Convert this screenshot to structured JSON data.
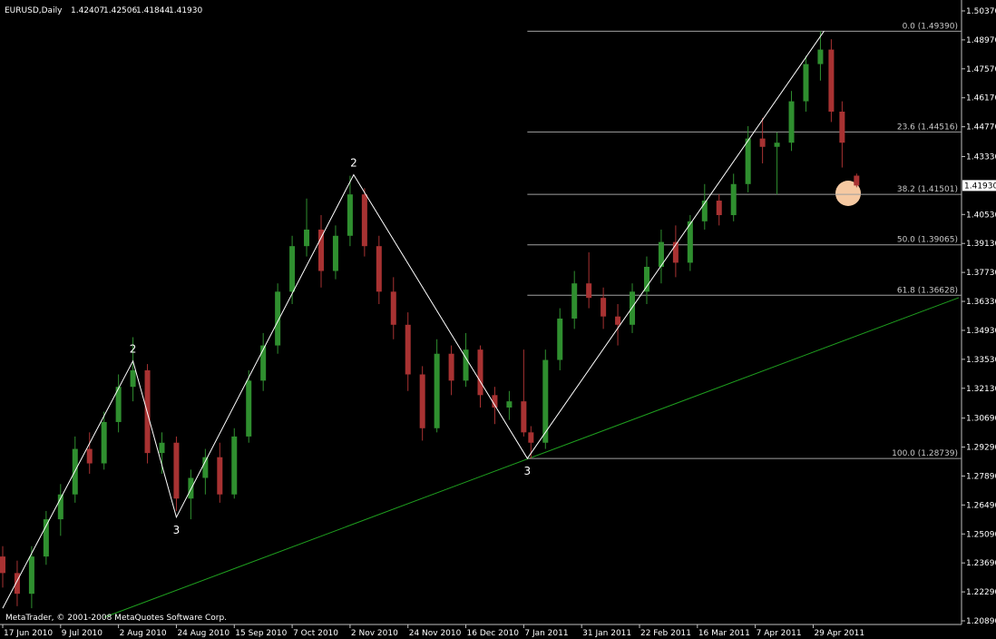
{
  "chart_data": {
    "type": "candlestick",
    "title": "EURUSD,Daily",
    "ohlc_labels": [
      "1.42407",
      "1.42506",
      "1.41844",
      "1.41930"
    ],
    "footer": "MetaTrader, © 2001-2008 MetaQuotes Software Corp.",
    "x": [
      0,
      4,
      8,
      12,
      16,
      20,
      24,
      28,
      32,
      36,
      40,
      44,
      48,
      52,
      56,
      60,
      64,
      68,
      72,
      76,
      80,
      84,
      88,
      92,
      96,
      100,
      104,
      108,
      112,
      116,
      120,
      124,
      128,
      132,
      136,
      140,
      144,
      146,
      150,
      154,
      158,
      162,
      166,
      170,
      174,
      178,
      182,
      186,
      190,
      194,
      198,
      202,
      206,
      210,
      214,
      218,
      222,
      226,
      229,
      232,
      236
    ],
    "open": [
      1.24,
      1.232,
      1.222,
      1.24,
      1.258,
      1.27,
      1.292,
      1.285,
      1.305,
      1.322,
      1.33,
      1.29,
      1.295,
      1.268,
      1.278,
      1.288,
      1.27,
      1.298,
      1.325,
      1.342,
      1.368,
      1.39,
      1.398,
      1.378,
      1.395,
      1.415,
      1.39,
      1.368,
      1.352,
      1.328,
      1.302,
      1.338,
      1.325,
      1.34,
      1.318,
      1.312,
      1.315,
      1.3,
      1.295,
      1.335,
      1.355,
      1.372,
      1.365,
      1.356,
      1.352,
      1.368,
      1.38,
      1.392,
      1.382,
      1.402,
      1.412,
      1.405,
      1.42,
      1.442,
      1.438,
      1.44,
      1.46,
      1.478,
      1.485,
      1.455,
      1.42407
    ],
    "high": [
      1.245,
      1.238,
      1.245,
      1.262,
      1.275,
      1.298,
      1.3,
      1.31,
      1.328,
      1.346,
      1.333,
      1.3,
      1.298,
      1.282,
      1.292,
      1.295,
      1.302,
      1.33,
      1.348,
      1.372,
      1.395,
      1.413,
      1.405,
      1.4,
      1.424,
      1.418,
      1.395,
      1.375,
      1.358,
      1.332,
      1.345,
      1.342,
      1.348,
      1.342,
      1.322,
      1.32,
      1.34,
      1.303,
      1.34,
      1.36,
      1.378,
      1.387,
      1.37,
      1.362,
      1.372,
      1.385,
      1.398,
      1.4,
      1.405,
      1.42,
      1.415,
      1.425,
      1.448,
      1.452,
      1.445,
      1.465,
      1.482,
      1.4939,
      1.49,
      1.46,
      1.42506
    ],
    "low": [
      1.225,
      1.216,
      1.215,
      1.236,
      1.25,
      1.266,
      1.28,
      1.282,
      1.3,
      1.315,
      1.285,
      1.28,
      1.262,
      1.258,
      1.27,
      1.266,
      1.268,
      1.295,
      1.32,
      1.338,
      1.362,
      1.385,
      1.37,
      1.374,
      1.39,
      1.385,
      1.362,
      1.345,
      1.32,
      1.296,
      1.3,
      1.318,
      1.322,
      1.312,
      1.304,
      1.306,
      1.298,
      1.2874,
      1.292,
      1.33,
      1.35,
      1.36,
      1.35,
      1.342,
      1.348,
      1.362,
      1.372,
      1.375,
      1.378,
      1.398,
      1.4,
      1.402,
      1.416,
      1.43,
      1.415,
      1.436,
      1.455,
      1.47,
      1.45,
      1.428,
      1.41844
    ],
    "close": [
      1.232,
      1.222,
      1.24,
      1.258,
      1.27,
      1.292,
      1.285,
      1.305,
      1.322,
      1.33,
      1.29,
      1.295,
      1.268,
      1.278,
      1.288,
      1.27,
      1.298,
      1.325,
      1.342,
      1.368,
      1.39,
      1.398,
      1.378,
      1.395,
      1.415,
      1.39,
      1.368,
      1.352,
      1.328,
      1.302,
      1.338,
      1.325,
      1.34,
      1.318,
      1.312,
      1.315,
      1.3,
      1.295,
      1.335,
      1.355,
      1.372,
      1.365,
      1.356,
      1.352,
      1.368,
      1.38,
      1.392,
      1.382,
      1.402,
      1.412,
      1.405,
      1.42,
      1.442,
      1.438,
      1.44,
      1.46,
      1.478,
      1.485,
      1.455,
      1.44,
      1.4193
    ],
    "up_color": "#2f8f2f",
    "down_color": "#a83232",
    "xlim": [
      -0.75,
      264.25
    ],
    "ylim": [
      1.20715,
      1.50896
    ],
    "xticks": [
      {
        "value": 0,
        "label": "17 Jun 2010"
      },
      {
        "value": 16,
        "label": "9 Jul 2010"
      },
      {
        "value": 32,
        "label": "2 Aug 2010"
      },
      {
        "value": 48,
        "label": "24 Aug 2010"
      },
      {
        "value": 64,
        "label": "15 Sep 2010"
      },
      {
        "value": 80,
        "label": "7 Oct 2010"
      },
      {
        "value": 96,
        "label": "2 Nov 2010"
      },
      {
        "value": 112,
        "label": "24 Nov 2010"
      },
      {
        "value": 128,
        "label": "16 Dec 2010"
      },
      {
        "value": 144,
        "label": "7 Jan 2011"
      },
      {
        "value": 160,
        "label": "31 Jan 2011"
      },
      {
        "value": 176,
        "label": "22 Feb 2011"
      },
      {
        "value": 192,
        "label": "16 Mar 2011"
      },
      {
        "value": 208,
        "label": "7 Apr 2011"
      },
      {
        "value": 224,
        "label": "29 Apr 2011"
      }
    ],
    "yticks": [
      {
        "value": 1.5037,
        "label": "1.50370"
      },
      {
        "value": 1.4897,
        "label": "1.48970"
      },
      {
        "value": 1.4757,
        "label": "1.47570"
      },
      {
        "value": 1.4617,
        "label": "1.46170"
      },
      {
        "value": 1.4477,
        "label": "1.44770"
      },
      {
        "value": 1.4333,
        "label": "1.43330"
      },
      {
        "value": 1.4053,
        "label": "1.40530"
      },
      {
        "value": 1.3913,
        "label": "1.39130"
      },
      {
        "value": 1.3773,
        "label": "1.37730"
      },
      {
        "value": 1.3633,
        "label": "1.36330"
      },
      {
        "value": 1.3493,
        "label": "1.34930"
      },
      {
        "value": 1.3353,
        "label": "1.33530"
      },
      {
        "value": 1.3213,
        "label": "1.32130"
      },
      {
        "value": 1.3069,
        "label": "1.30690"
      },
      {
        "value": 1.2929,
        "label": "1.29290"
      },
      {
        "value": 1.2789,
        "label": "1.27890"
      },
      {
        "value": 1.2649,
        "label": "1.26490"
      },
      {
        "value": 1.2509,
        "label": "1.25090"
      },
      {
        "value": 1.2369,
        "label": "1.23690"
      },
      {
        "value": 1.2229,
        "label": "1.22290"
      },
      {
        "value": 1.2089,
        "label": "1.20890"
      }
    ],
    "current_price": {
      "value": 1.4193,
      "label": "1.41930"
    },
    "zigzag": {
      "x": [
        0,
        36,
        48,
        97,
        145,
        227
      ],
      "y": [
        1.215,
        1.3345,
        1.259,
        1.4245,
        1.2874,
        1.4939
      ],
      "labels": [
        null,
        "2",
        "3",
        "2",
        "3",
        null
      ],
      "color": "#ffffff"
    },
    "trendline": {
      "x": [
        28,
        264.25
      ],
      "y": [
        1.2106,
        1.3651
      ],
      "color": "#1fa01f"
    },
    "fibo": {
      "x_start": 145,
      "color": "#a0a0a0",
      "levels": [
        {
          "value": 1.4939,
          "label": "0.0 (1.49390)"
        },
        {
          "value": 1.44516,
          "label": "23.6 (1.44516)"
        },
        {
          "value": 1.41501,
          "label": "38.2 (1.41501)"
        },
        {
          "value": 1.39065,
          "label": "50.0 (1.39065)"
        },
        {
          "value": 1.36628,
          "label": "61.8 (1.36628)"
        },
        {
          "value": 1.28739,
          "label": "100.0 (1.28739)"
        }
      ]
    }
  }
}
